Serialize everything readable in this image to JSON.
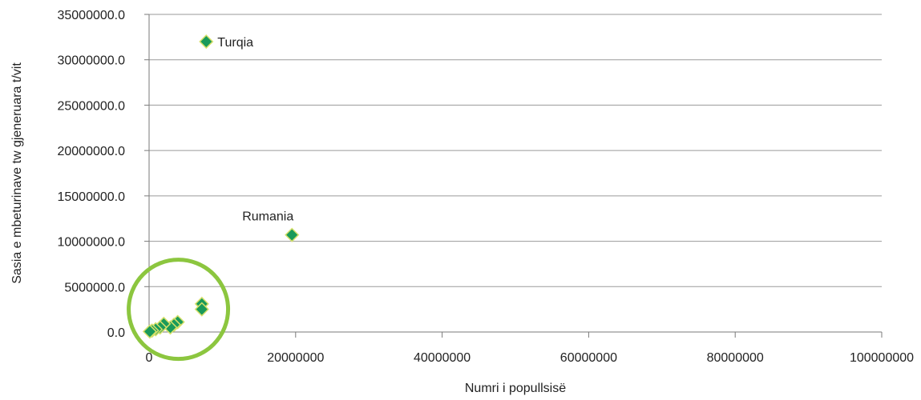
{
  "chart_data": {
    "type": "scatter",
    "xlabel": "Numri i popullsisë",
    "ylabel": "Sasia e mbeturinave tw gjeneruara   t/vit",
    "xlim": [
      0,
      100000000
    ],
    "ylim": [
      0,
      35000000
    ],
    "x_ticks": [
      "0",
      "20000000",
      "40000000",
      "60000000",
      "80000000",
      "100000000"
    ],
    "y_ticks": [
      "0.0",
      "5000000.0",
      "10000000.0",
      "15000000.0",
      "20000000.0",
      "25000000.0",
      "30000000.0",
      "35000000.0"
    ],
    "grid": "horizontal",
    "marker_color": "#1a9a5a",
    "marker_edge": "#d6e06a",
    "highlight_circle_color": "#8cc63f",
    "highlight_circle_center": [
      4000000,
      2500000
    ],
    "points": [
      {
        "x": 7800000,
        "y": 32000000,
        "label": "Turqia"
      },
      {
        "x": 19500000,
        "y": 10700000,
        "label": "Rumania"
      },
      {
        "x": 7200000,
        "y": 3100000,
        "label": ""
      },
      {
        "x": 7200000,
        "y": 2500000,
        "label": ""
      },
      {
        "x": 3900000,
        "y": 1100000,
        "label": ""
      },
      {
        "x": 3400000,
        "y": 800000,
        "label": ""
      },
      {
        "x": 2900000,
        "y": 500000,
        "label": ""
      },
      {
        "x": 2000000,
        "y": 900000,
        "label": ""
      },
      {
        "x": 1500000,
        "y": 500000,
        "label": ""
      },
      {
        "x": 900000,
        "y": 300000,
        "label": ""
      },
      {
        "x": 400000,
        "y": 150000,
        "label": ""
      },
      {
        "x": 100000,
        "y": 50000,
        "label": ""
      }
    ]
  }
}
